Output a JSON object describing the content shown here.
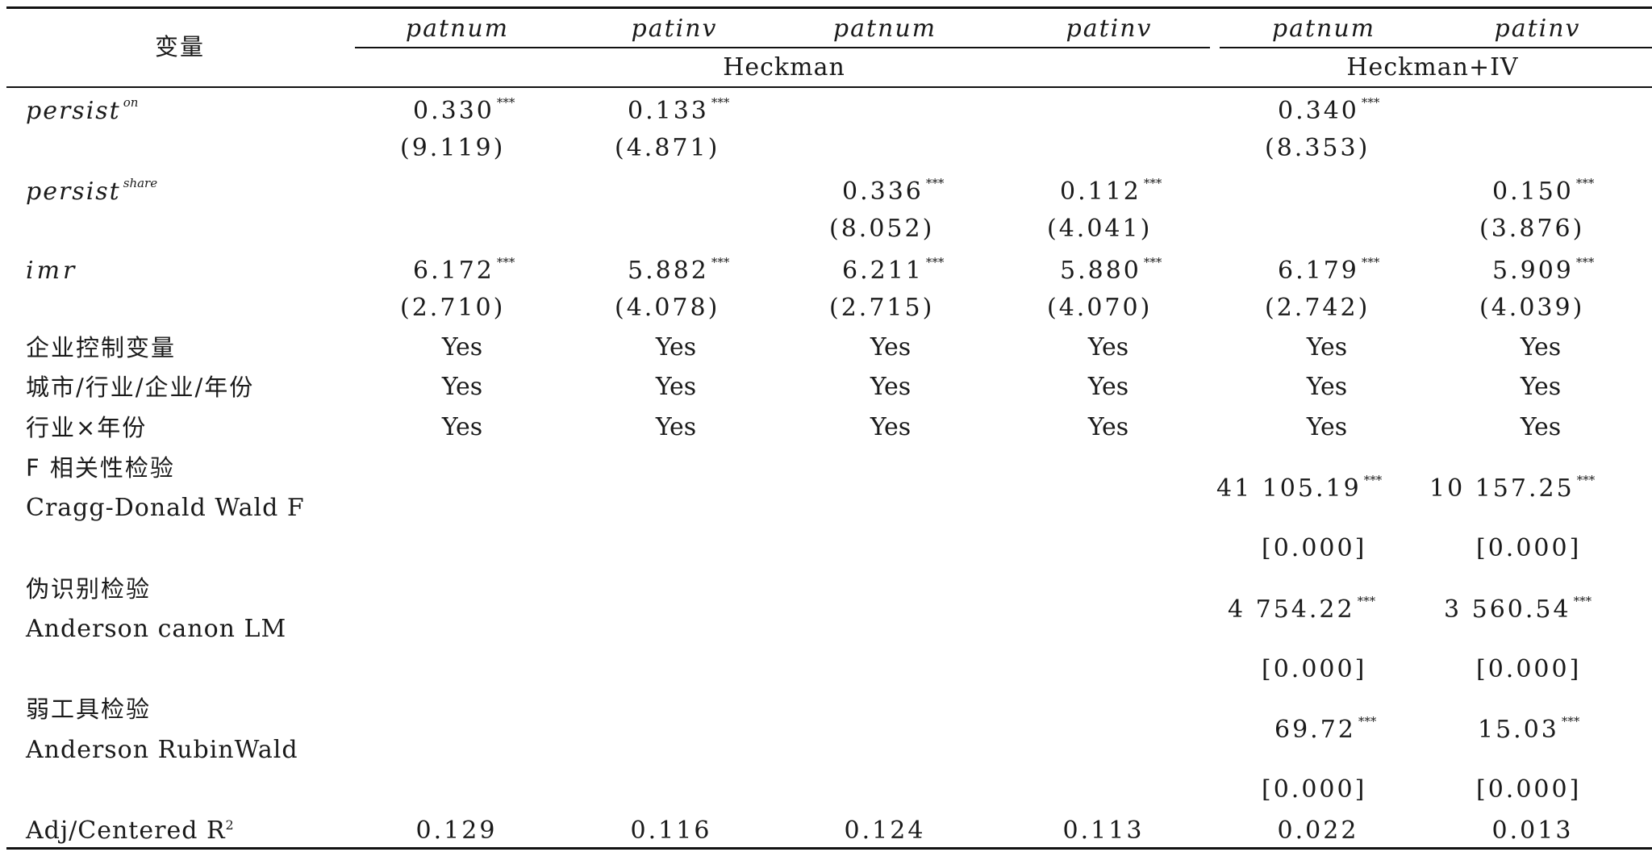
{
  "header": {
    "variable_label": "变量",
    "columns": [
      "patnum",
      "patinv",
      "patnum",
      "patinv",
      "patnum",
      "patinv"
    ],
    "group_heckman": "Heckman",
    "group_heckman_iv": "Heckman+IV"
  },
  "rows": {
    "persist_on": {
      "label": "persist",
      "sup": "on",
      "coef": [
        "0.330",
        "0.133",
        "",
        "",
        "0.340",
        ""
      ],
      "tstat": [
        "(9.119)",
        "(4.871)",
        "",
        "",
        "(8.353)",
        ""
      ]
    },
    "persist_share": {
      "label": "persist",
      "sup": "share",
      "coef": [
        "",
        "",
        "0.336",
        "0.112",
        "",
        "0.150"
      ],
      "tstat": [
        "",
        "",
        "(8.052)",
        "(4.041)",
        "",
        "(3.876)"
      ]
    },
    "imr": {
      "label": "imr",
      "coef": [
        "6.172",
        "5.882",
        "6.211",
        "5.880",
        "6.179",
        "5.909"
      ],
      "tstat": [
        "(2.710)",
        "(4.078)",
        "(2.715)",
        "(4.070)",
        "(2.742)",
        "(4.039)"
      ]
    },
    "firm_controls": {
      "label": "企业控制变量",
      "values": [
        "Yes",
        "Yes",
        "Yes",
        "Yes",
        "Yes",
        "Yes"
      ]
    },
    "fixed_effects": {
      "label": "城市/行业/企业/年份",
      "values": [
        "Yes",
        "Yes",
        "Yes",
        "Yes",
        "Yes",
        "Yes"
      ]
    },
    "industry_year": {
      "label": "行业×年份",
      "values": [
        "Yes",
        "Yes",
        "Yes",
        "Yes",
        "Yes",
        "Yes"
      ]
    },
    "f_test": {
      "label_cn": "F 相关性检验",
      "label_en": "Cragg-Donald Wald F",
      "values": [
        "41 105.19",
        "10 157.25"
      ],
      "pvalues": [
        "[0.000]",
        "[0.000]"
      ]
    },
    "underid_test": {
      "label_cn": "伪识别检验",
      "label_en": "Anderson canon LM",
      "values": [
        "4 754.22",
        "3 560.54"
      ],
      "pvalues": [
        "[0.000]",
        "[0.000]"
      ]
    },
    "weak_test": {
      "label_cn": "弱工具检验",
      "label_en": "Anderson RubinWald",
      "values": [
        "69.72",
        "15.03"
      ],
      "pvalues": [
        "[0.000]",
        "[0.000]"
      ]
    },
    "r2": {
      "label": "Adj/Centered R",
      "label_sup": "2",
      "values": [
        "0.129",
        "0.116",
        "0.124",
        "0.113",
        "0.022",
        "0.013"
      ]
    }
  },
  "significance_mark": "***"
}
